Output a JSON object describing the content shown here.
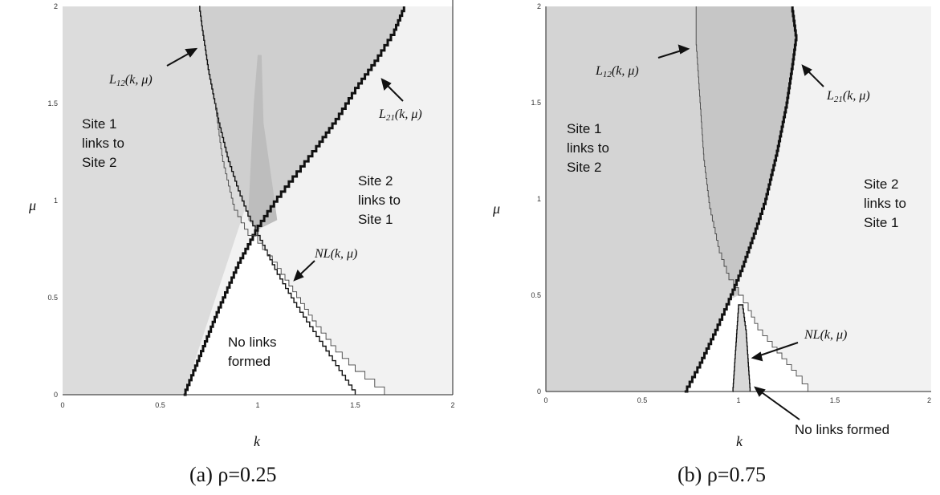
{
  "chart_data": [
    {
      "type": "area",
      "panel": "a",
      "caption": "(a) ρ=0.25",
      "xlabel": "k",
      "ylabel": "μ",
      "xlim": [
        0,
        2
      ],
      "ylim": [
        0,
        2
      ],
      "x_ticks": [
        "0",
        "0.5",
        "1",
        "1.5",
        "2"
      ],
      "y_ticks": [
        "0",
        "0.5",
        "1",
        "1.5",
        "2"
      ],
      "colors": {
        "site1": "#dcdcdc",
        "site2": "#f2f2f2",
        "both": "#cfcfcf",
        "nolinks": "#ffffff",
        "overlap": "#bdbdbd"
      },
      "regions": [
        {
          "name": "Site 1 links to Site 2",
          "lines": [
            "Site 1",
            "links to",
            "Site 2"
          ]
        },
        {
          "name": "Site 2 links to Site 1",
          "lines": [
            "Site 2",
            "links to",
            "Site 1"
          ]
        },
        {
          "name": "No links formed",
          "lines": [
            "No links",
            "formed"
          ]
        }
      ],
      "series": [
        {
          "name": "L12(k, μ)",
          "label_main": "L",
          "label_sub": "12",
          "label_args": "(k, μ)",
          "x": [
            0.7,
            0.72,
            0.75,
            0.8,
            0.85,
            0.9,
            0.95,
            1.0,
            1.05,
            1.1,
            1.2,
            1.3,
            1.4,
            1.5
          ],
          "y": [
            2.0,
            1.85,
            1.65,
            1.4,
            1.2,
            1.05,
            0.92,
            0.82,
            0.72,
            0.62,
            0.45,
            0.3,
            0.15,
            0.0
          ]
        },
        {
          "name": "L21(k, μ)",
          "label_main": "L",
          "label_sub": "21",
          "label_args": "(k, μ)",
          "x": [
            0.62,
            0.7,
            0.8,
            0.9,
            1.0,
            1.1,
            1.2,
            1.3,
            1.4,
            1.5,
            1.6,
            1.7,
            1.75
          ],
          "y": [
            0.0,
            0.2,
            0.45,
            0.68,
            0.87,
            1.02,
            1.15,
            1.28,
            1.42,
            1.58,
            1.72,
            1.88,
            2.0
          ]
        },
        {
          "name": "NL(k, μ)",
          "label_main": "NL",
          "label_sub": "",
          "label_args": "(k, μ)",
          "x": [
            0.78,
            0.82,
            0.88,
            0.95,
            1.0,
            1.1,
            1.2,
            1.3,
            1.4,
            1.5,
            1.6,
            1.65
          ],
          "y": [
            1.5,
            1.2,
            0.95,
            0.82,
            0.78,
            0.65,
            0.5,
            0.35,
            0.22,
            0.12,
            0.04,
            0.0
          ]
        }
      ]
    },
    {
      "type": "area",
      "panel": "b",
      "caption": "(b) ρ=0.75",
      "xlabel": "k",
      "ylabel": "μ",
      "xlim": [
        0,
        2
      ],
      "ylim": [
        0,
        2
      ],
      "x_ticks": [
        "0",
        "0.5",
        "1",
        "1.5",
        "2"
      ],
      "y_ticks": [
        "0",
        "0.5",
        "1",
        "1.5",
        "2"
      ],
      "colors": {
        "site1": "#d4d4d4",
        "site2": "#f2f2f2",
        "both": "#c6c6c6",
        "nolinks": "#ffffff"
      },
      "regions": [
        {
          "name": "Site 1 links to Site 2",
          "lines": [
            "Site 1",
            "links to",
            "Site 2"
          ]
        },
        {
          "name": "Site 2 links to Site 1",
          "lines": [
            "Site 2",
            "links to",
            "Site 1"
          ]
        },
        {
          "name": "No links formed",
          "lines": [
            "No links formed"
          ]
        }
      ],
      "series": [
        {
          "name": "L12(k, μ)",
          "label_main": "L",
          "label_sub": "12",
          "label_args": "(k, μ)",
          "x": [
            0.78,
            0.78,
            0.8,
            0.82,
            0.85,
            0.9,
            0.95,
            1.0,
            1.05,
            1.1,
            1.2,
            1.3,
            1.36
          ],
          "y": [
            2.0,
            1.8,
            1.5,
            1.2,
            0.95,
            0.72,
            0.58,
            0.5,
            0.42,
            0.32,
            0.2,
            0.08,
            0.0
          ]
        },
        {
          "name": "L21(k, μ)",
          "label_main": "L",
          "label_sub": "21",
          "label_args": "(k, μ)",
          "x": [
            0.72,
            0.8,
            0.88,
            0.95,
            1.02,
            1.08,
            1.14,
            1.2,
            1.25,
            1.28,
            1.3,
            1.28
          ],
          "y": [
            0.0,
            0.15,
            0.32,
            0.48,
            0.65,
            0.82,
            1.0,
            1.25,
            1.5,
            1.7,
            1.85,
            2.0
          ]
        },
        {
          "name": "NL(k, μ)",
          "label_main": "NL",
          "label_sub": "",
          "label_args": "(k, μ)",
          "x": [
            0.97,
            0.98,
            0.99,
            1.0,
            1.02,
            1.04,
            1.05,
            1.06
          ],
          "y": [
            0.0,
            0.15,
            0.3,
            0.45,
            0.45,
            0.3,
            0.15,
            0.0
          ]
        }
      ]
    }
  ]
}
